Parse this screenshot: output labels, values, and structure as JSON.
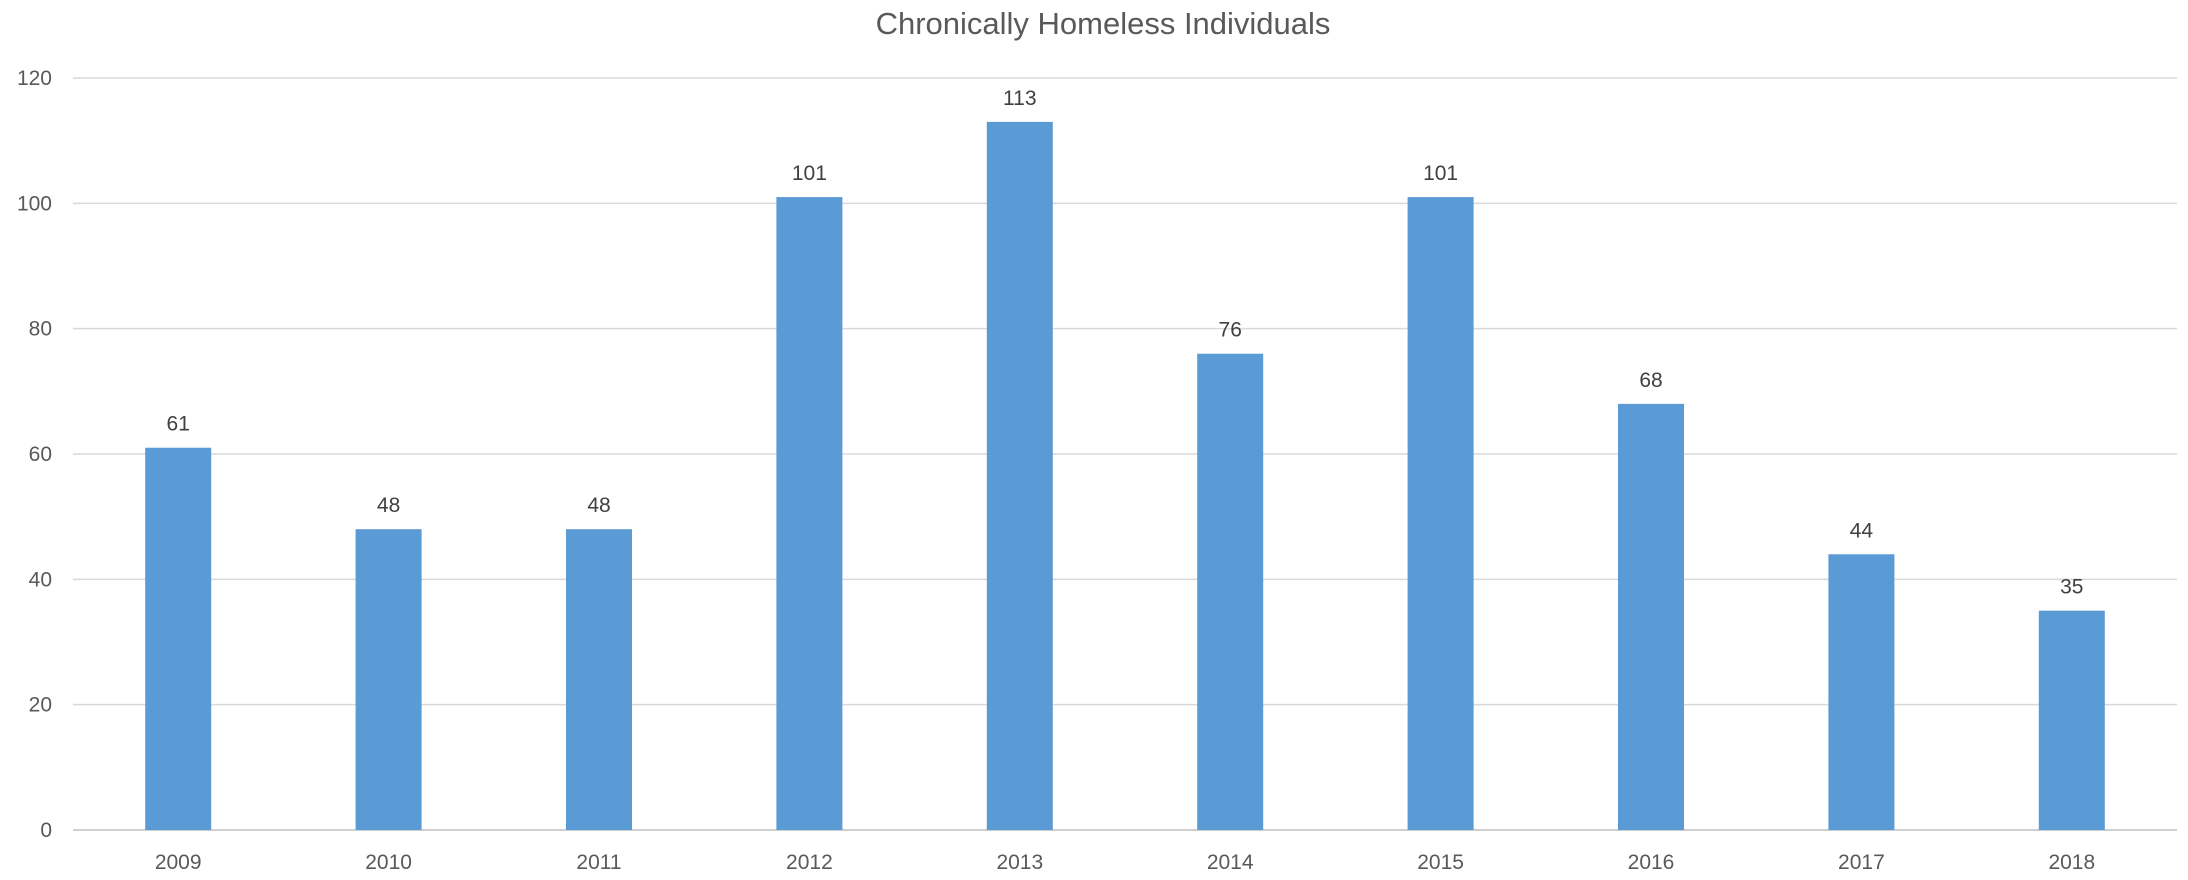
{
  "chart_data": {
    "type": "bar",
    "title": "Chronically Homeless Individuals",
    "categories": [
      "2009",
      "2010",
      "2011",
      "2012",
      "2013",
      "2014",
      "2015",
      "2016",
      "2017",
      "2018"
    ],
    "series": [
      {
        "values": [
          61,
          48,
          48,
          101,
          113,
          76,
          101,
          68,
          44,
          35
        ],
        "color": "#5b9bd5"
      }
    ],
    "data_labels": [
      "61",
      "48",
      "48",
      "101",
      "113",
      "76",
      "101",
      "68",
      "44",
      "35"
    ],
    "ylim": [
      0,
      120
    ],
    "yticks": [
      "0",
      "20",
      "40",
      "60",
      "80",
      "100",
      "120"
    ],
    "grid": true,
    "legend": "none"
  }
}
